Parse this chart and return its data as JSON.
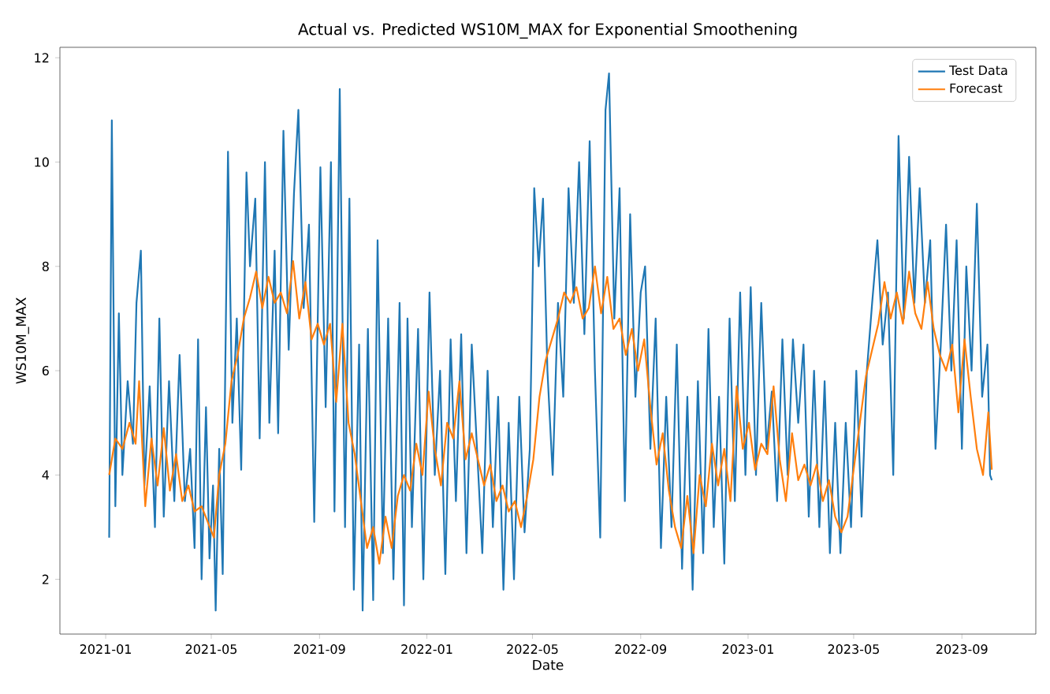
{
  "chart_data": {
    "type": "line",
    "title": "Actual vs. Predicted WS10M_MAX for Exponential Smoothening",
    "xlabel": "Date",
    "ylabel": "WS10M_MAX",
    "legend": "top right",
    "grid": false,
    "line_style": "solid",
    "marker": "none",
    "xlim": [
      "2020-11-10",
      "2023-11-24"
    ],
    "xticks": [
      "2021-01",
      "2021-05",
      "2021-09",
      "2022-01",
      "2022-05",
      "2022-09",
      "2023-01",
      "2023-05",
      "2023-09"
    ],
    "ylim": [
      0.95,
      12.2
    ],
    "yticks": [
      2,
      4,
      6,
      8,
      10,
      12
    ],
    "series": [
      {
        "name": "Test Data",
        "color": "#1f77b4",
        "x": [
          "2021-01-05",
          "2021-01-08",
          "2021-01-12",
          "2021-01-16",
          "2021-01-20",
          "2021-01-26",
          "2021-02-01",
          "2021-02-05",
          "2021-02-10",
          "2021-02-14",
          "2021-02-20",
          "2021-02-26",
          "2021-03-03",
          "2021-03-08",
          "2021-03-14",
          "2021-03-20",
          "2021-03-26",
          "2021-04-01",
          "2021-04-07",
          "2021-04-12",
          "2021-04-16",
          "2021-04-20",
          "2021-04-25",
          "2021-04-29",
          "2021-05-03",
          "2021-05-06",
          "2021-05-10",
          "2021-05-14",
          "2021-05-20",
          "2021-05-25",
          "2021-05-30",
          "2021-06-04",
          "2021-06-10",
          "2021-06-14",
          "2021-06-20",
          "2021-06-25",
          "2021-07-01",
          "2021-07-06",
          "2021-07-12",
          "2021-07-16",
          "2021-07-22",
          "2021-07-28",
          "2021-08-03",
          "2021-08-08",
          "2021-08-14",
          "2021-08-20",
          "2021-08-26",
          "2021-09-02",
          "2021-09-08",
          "2021-09-14",
          "2021-09-18",
          "2021-09-24",
          "2021-09-30",
          "2021-10-05",
          "2021-10-10",
          "2021-10-16",
          "2021-10-20",
          "2021-10-26",
          "2021-11-01",
          "2021-11-06",
          "2021-11-12",
          "2021-11-18",
          "2021-11-24",
          "2021-12-01",
          "2021-12-06",
          "2021-12-10",
          "2021-12-15",
          "2021-12-22",
          "2021-12-28",
          "2022-01-04",
          "2022-01-10",
          "2022-01-16",
          "2022-01-22",
          "2022-01-28",
          "2022-02-03",
          "2022-02-09",
          "2022-02-15",
          "2022-02-21",
          "2022-02-27",
          "2022-03-05",
          "2022-03-11",
          "2022-03-17",
          "2022-03-23",
          "2022-03-29",
          "2022-04-04",
          "2022-04-10",
          "2022-04-16",
          "2022-04-22",
          "2022-04-28",
          "2022-05-03",
          "2022-05-08",
          "2022-05-13",
          "2022-05-18",
          "2022-05-24",
          "2022-05-30",
          "2022-06-05",
          "2022-06-11",
          "2022-06-17",
          "2022-06-23",
          "2022-06-29",
          "2022-07-05",
          "2022-07-11",
          "2022-07-17",
          "2022-07-23",
          "2022-07-27",
          "2022-08-02",
          "2022-08-08",
          "2022-08-14",
          "2022-08-20",
          "2022-08-26",
          "2022-09-01",
          "2022-09-06",
          "2022-09-12",
          "2022-09-18",
          "2022-09-24",
          "2022-09-30",
          "2022-10-06",
          "2022-10-12",
          "2022-10-18",
          "2022-10-24",
          "2022-10-30",
          "2022-11-05",
          "2022-11-11",
          "2022-11-17",
          "2022-11-23",
          "2022-11-29",
          "2022-12-05",
          "2022-12-11",
          "2022-12-17",
          "2022-12-23",
          "2022-12-29",
          "2023-01-04",
          "2023-01-10",
          "2023-01-16",
          "2023-01-22",
          "2023-01-28",
          "2023-02-03",
          "2023-02-09",
          "2023-02-15",
          "2023-02-21",
          "2023-02-27",
          "2023-03-05",
          "2023-03-11",
          "2023-03-17",
          "2023-03-23",
          "2023-03-29",
          "2023-04-04",
          "2023-04-10",
          "2023-04-16",
          "2023-04-22",
          "2023-04-28",
          "2023-05-04",
          "2023-05-10",
          "2023-05-16",
          "2023-05-22",
          "2023-05-28",
          "2023-06-03",
          "2023-06-09",
          "2023-06-15",
          "2023-06-21",
          "2023-06-27",
          "2023-07-03",
          "2023-07-09",
          "2023-07-15",
          "2023-07-21",
          "2023-07-27",
          "2023-08-02",
          "2023-08-08",
          "2023-08-14",
          "2023-08-20",
          "2023-08-26",
          "2023-09-01",
          "2023-09-06",
          "2023-09-12",
          "2023-09-18",
          "2023-09-24",
          "2023-09-30",
          "2023-10-03",
          "2023-10-05"
        ],
        "values": [
          2.8,
          10.8,
          3.4,
          7.1,
          4.0,
          5.8,
          4.6,
          7.3,
          8.3,
          3.8,
          5.7,
          3.0,
          7.0,
          3.2,
          5.8,
          3.5,
          6.3,
          3.5,
          4.5,
          2.6,
          6.6,
          2.0,
          5.3,
          2.4,
          3.8,
          1.4,
          4.5,
          2.1,
          10.2,
          5.0,
          7.0,
          4.1,
          9.8,
          8.0,
          9.3,
          4.7,
          10.0,
          5.0,
          8.3,
          4.8,
          10.6,
          6.4,
          9.4,
          11.0,
          7.2,
          8.8,
          3.1,
          9.9,
          5.3,
          10.0,
          3.3,
          11.4,
          3.0,
          9.3,
          1.8,
          6.5,
          1.4,
          6.8,
          1.6,
          8.5,
          2.5,
          7.0,
          2.0,
          7.3,
          1.5,
          7.0,
          3.0,
          6.8,
          2.0,
          7.5,
          4.0,
          6.0,
          2.1,
          6.6,
          3.5,
          6.7,
          2.5,
          6.5,
          4.5,
          2.5,
          6.0,
          3.0,
          5.5,
          1.8,
          5.0,
          2.0,
          5.5,
          2.9,
          4.5,
          9.5,
          8.0,
          9.3,
          6.0,
          4.0,
          7.3,
          5.5,
          9.5,
          7.3,
          10.0,
          6.7,
          10.4,
          6.0,
          2.8,
          11.0,
          11.7,
          7.0,
          9.5,
          3.5,
          9.0,
          5.5,
          7.5,
          8.0,
          4.5,
          7.0,
          2.6,
          5.5,
          3.0,
          6.5,
          2.2,
          5.5,
          1.8,
          5.8,
          2.5,
          6.8,
          3.0,
          5.5,
          2.3,
          7.0,
          3.5,
          7.5,
          4.0,
          7.6,
          4.0,
          7.3,
          4.5,
          5.6,
          3.5,
          6.6,
          4.0,
          6.6,
          5.0,
          6.5,
          3.2,
          6.0,
          3.0,
          5.8,
          2.5,
          5.0,
          2.5,
          5.0,
          3.0,
          6.0,
          3.2,
          6.0,
          7.3,
          8.5,
          6.5,
          7.5,
          4.0,
          10.5,
          7.0,
          10.1,
          7.3,
          9.5,
          7.3,
          8.5,
          4.5,
          6.5,
          8.8,
          6.0,
          8.5,
          4.5,
          8.0,
          6.0,
          9.2,
          5.5,
          6.5,
          4.0,
          3.9
        ]
      },
      {
        "name": "Forecast",
        "color": "#ff7f0e",
        "x": [
          "2021-01-05",
          "2021-01-12",
          "2021-01-20",
          "2021-01-28",
          "2021-02-04",
          "2021-02-08",
          "2021-02-15",
          "2021-02-22",
          "2021-03-01",
          "2021-03-08",
          "2021-03-15",
          "2021-03-22",
          "2021-03-29",
          "2021-04-05",
          "2021-04-12",
          "2021-04-20",
          "2021-04-27",
          "2021-05-04",
          "2021-05-10",
          "2021-05-17",
          "2021-05-24",
          "2021-05-31",
          "2021-06-07",
          "2021-06-14",
          "2021-06-21",
          "2021-06-28",
          "2021-07-05",
          "2021-07-12",
          "2021-07-19",
          "2021-07-26",
          "2021-08-02",
          "2021-08-09",
          "2021-08-16",
          "2021-08-23",
          "2021-08-30",
          "2021-09-06",
          "2021-09-13",
          "2021-09-20",
          "2021-09-27",
          "2021-10-04",
          "2021-10-11",
          "2021-10-18",
          "2021-10-25",
          "2021-11-01",
          "2021-11-08",
          "2021-11-15",
          "2021-11-22",
          "2021-11-29",
          "2021-12-06",
          "2021-12-13",
          "2021-12-20",
          "2021-12-27",
          "2022-01-03",
          "2022-01-10",
          "2022-01-17",
          "2022-01-24",
          "2022-01-31",
          "2022-02-07",
          "2022-02-14",
          "2022-02-21",
          "2022-02-28",
          "2022-03-07",
          "2022-03-14",
          "2022-03-21",
          "2022-03-28",
          "2022-04-04",
          "2022-04-11",
          "2022-04-18",
          "2022-04-25",
          "2022-05-02",
          "2022-05-09",
          "2022-05-16",
          "2022-05-23",
          "2022-05-30",
          "2022-06-06",
          "2022-06-13",
          "2022-06-20",
          "2022-06-27",
          "2022-07-04",
          "2022-07-11",
          "2022-07-18",
          "2022-07-25",
          "2022-08-01",
          "2022-08-08",
          "2022-08-15",
          "2022-08-22",
          "2022-08-29",
          "2022-09-05",
          "2022-09-12",
          "2022-09-19",
          "2022-09-26",
          "2022-10-03",
          "2022-10-10",
          "2022-10-17",
          "2022-10-24",
          "2022-10-31",
          "2022-11-07",
          "2022-11-14",
          "2022-11-21",
          "2022-11-28",
          "2022-12-05",
          "2022-12-12",
          "2022-12-19",
          "2022-12-26",
          "2023-01-02",
          "2023-01-09",
          "2023-01-16",
          "2023-01-23",
          "2023-01-30",
          "2023-02-06",
          "2023-02-13",
          "2023-02-20",
          "2023-02-27",
          "2023-03-06",
          "2023-03-13",
          "2023-03-20",
          "2023-03-27",
          "2023-04-03",
          "2023-04-10",
          "2023-04-17",
          "2023-04-24",
          "2023-05-01",
          "2023-05-08",
          "2023-05-15",
          "2023-05-22",
          "2023-05-29",
          "2023-06-05",
          "2023-06-12",
          "2023-06-19",
          "2023-06-26",
          "2023-07-03",
          "2023-07-10",
          "2023-07-17",
          "2023-07-24",
          "2023-07-31",
          "2023-08-07",
          "2023-08-14",
          "2023-08-21",
          "2023-08-28",
          "2023-09-04",
          "2023-09-11",
          "2023-09-18",
          "2023-09-25",
          "2023-10-01",
          "2023-10-05"
        ],
        "values": [
          4.0,
          4.7,
          4.5,
          5.0,
          4.6,
          5.8,
          3.4,
          4.7,
          3.8,
          4.9,
          3.7,
          4.4,
          3.5,
          3.8,
          3.3,
          3.4,
          3.1,
          2.8,
          4.0,
          4.6,
          5.8,
          6.3,
          7.0,
          7.4,
          7.9,
          7.2,
          7.8,
          7.3,
          7.5,
          7.1,
          8.1,
          7.0,
          7.7,
          6.6,
          6.9,
          6.5,
          6.9,
          5.4,
          6.9,
          5.0,
          4.4,
          3.5,
          2.6,
          3.0,
          2.3,
          3.2,
          2.6,
          3.6,
          4.0,
          3.7,
          4.6,
          4.0,
          5.6,
          4.5,
          3.8,
          5.0,
          4.7,
          5.8,
          4.3,
          4.8,
          4.3,
          3.8,
          4.2,
          3.5,
          3.8,
          3.3,
          3.5,
          3.0,
          3.6,
          4.3,
          5.5,
          6.2,
          6.6,
          7.0,
          7.5,
          7.3,
          7.6,
          7.0,
          7.2,
          8.0,
          7.1,
          7.8,
          6.8,
          7.0,
          6.3,
          6.8,
          6.0,
          6.6,
          5.3,
          4.2,
          4.8,
          3.7,
          3.0,
          2.6,
          3.6,
          2.5,
          4.0,
          3.4,
          4.6,
          3.8,
          4.5,
          3.5,
          5.7,
          4.5,
          5.0,
          4.1,
          4.6,
          4.4,
          5.7,
          4.3,
          3.5,
          4.8,
          3.9,
          4.2,
          3.8,
          4.2,
          3.5,
          3.9,
          3.2,
          2.9,
          3.2,
          4.1,
          5.0,
          5.9,
          6.4,
          6.9,
          7.7,
          7.0,
          7.5,
          6.9,
          7.9,
          7.1,
          6.8,
          7.7,
          6.8,
          6.3,
          6.0,
          6.5,
          5.2,
          6.6,
          5.5,
          4.5,
          4.0,
          5.2,
          4.1
        ]
      }
    ]
  }
}
